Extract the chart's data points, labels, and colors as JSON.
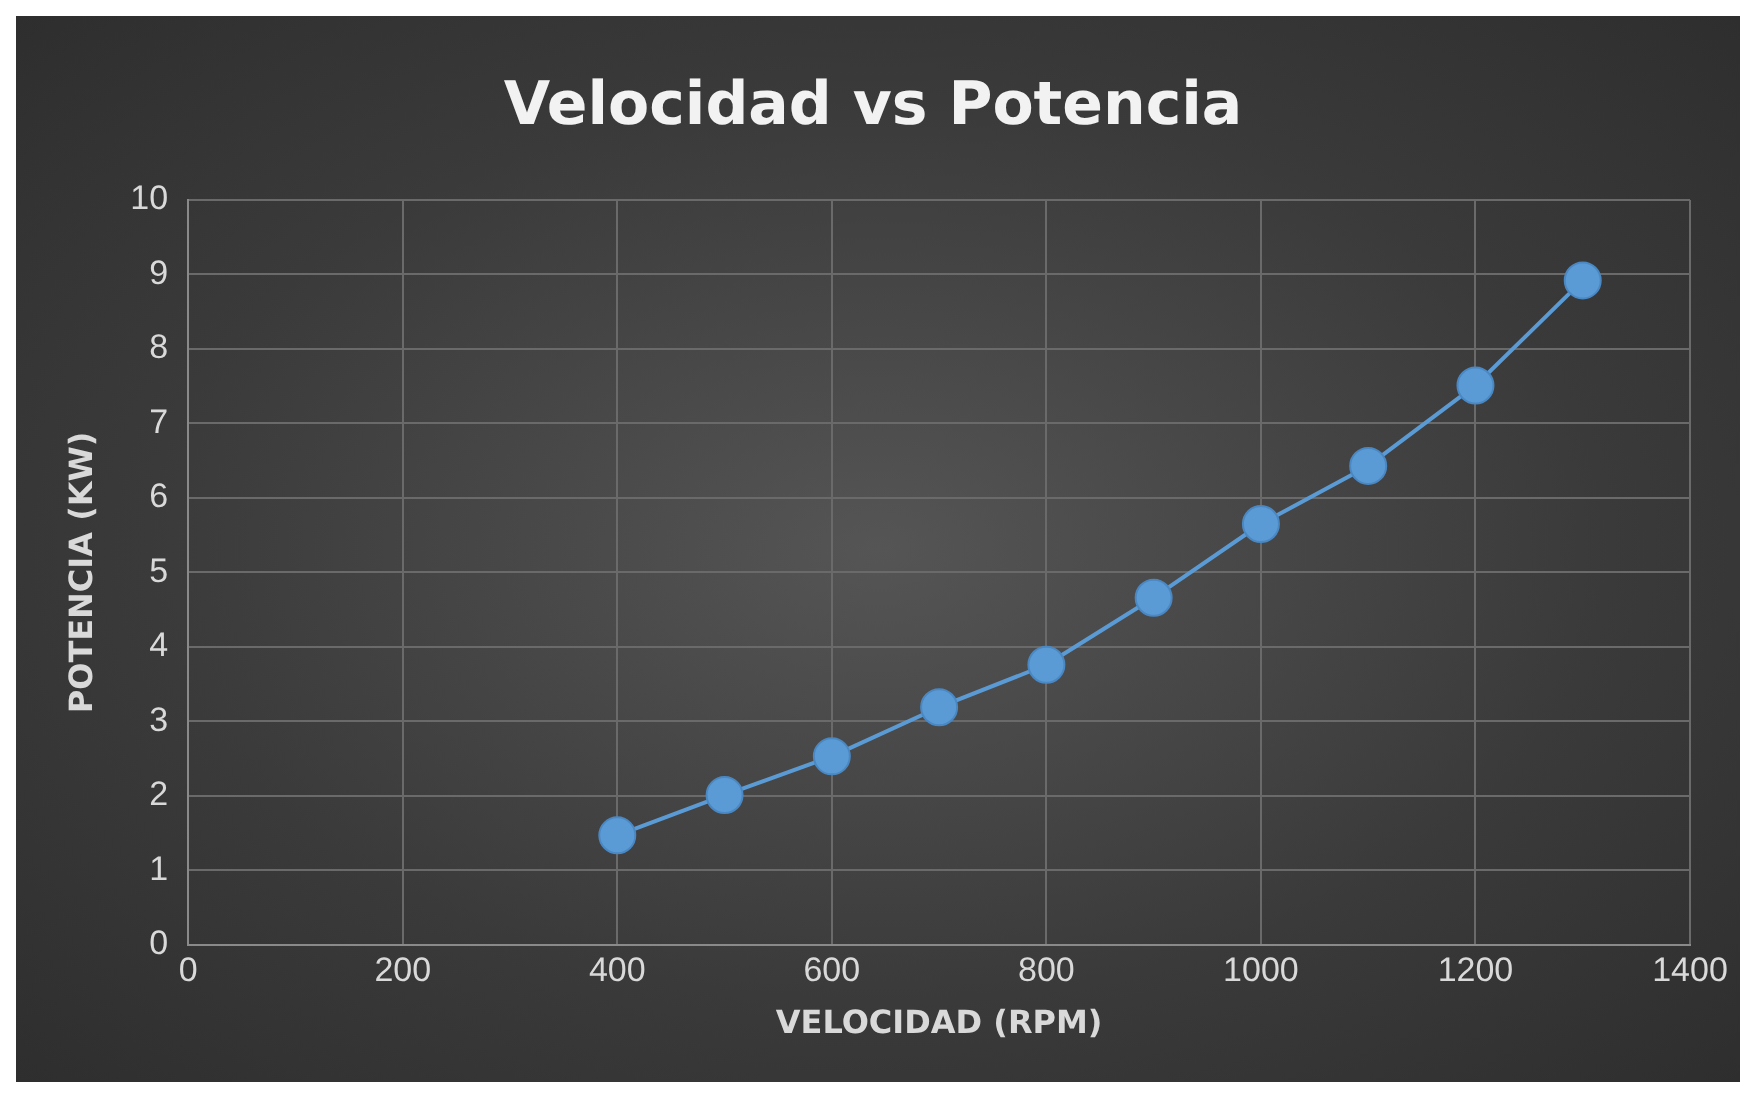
{
  "chart_data": {
    "type": "line",
    "title": "Velocidad vs Potencia",
    "xlabel": "VELOCIDAD (RPM)",
    "ylabel": "POTENCIA (KW)",
    "x": [
      400,
      500,
      600,
      700,
      800,
      900,
      1000,
      1100,
      1200,
      1300
    ],
    "series": [
      {
        "color": "#5b9bd5",
        "values": [
          1.47,
          2.01,
          2.53,
          3.19,
          3.76,
          4.66,
          5.65,
          6.43,
          7.51,
          8.92
        ]
      }
    ],
    "xlim": [
      0,
      1400
    ],
    "xticks": [
      0,
      200,
      400,
      600,
      800,
      1000,
      1200,
      1400
    ],
    "ylim": [
      0,
      10
    ],
    "yticks": [
      0,
      1,
      2,
      3,
      4,
      5,
      6,
      7,
      8,
      9,
      10
    ],
    "grid": true,
    "legend": false,
    "marker": "circle",
    "line_style": "solid"
  }
}
